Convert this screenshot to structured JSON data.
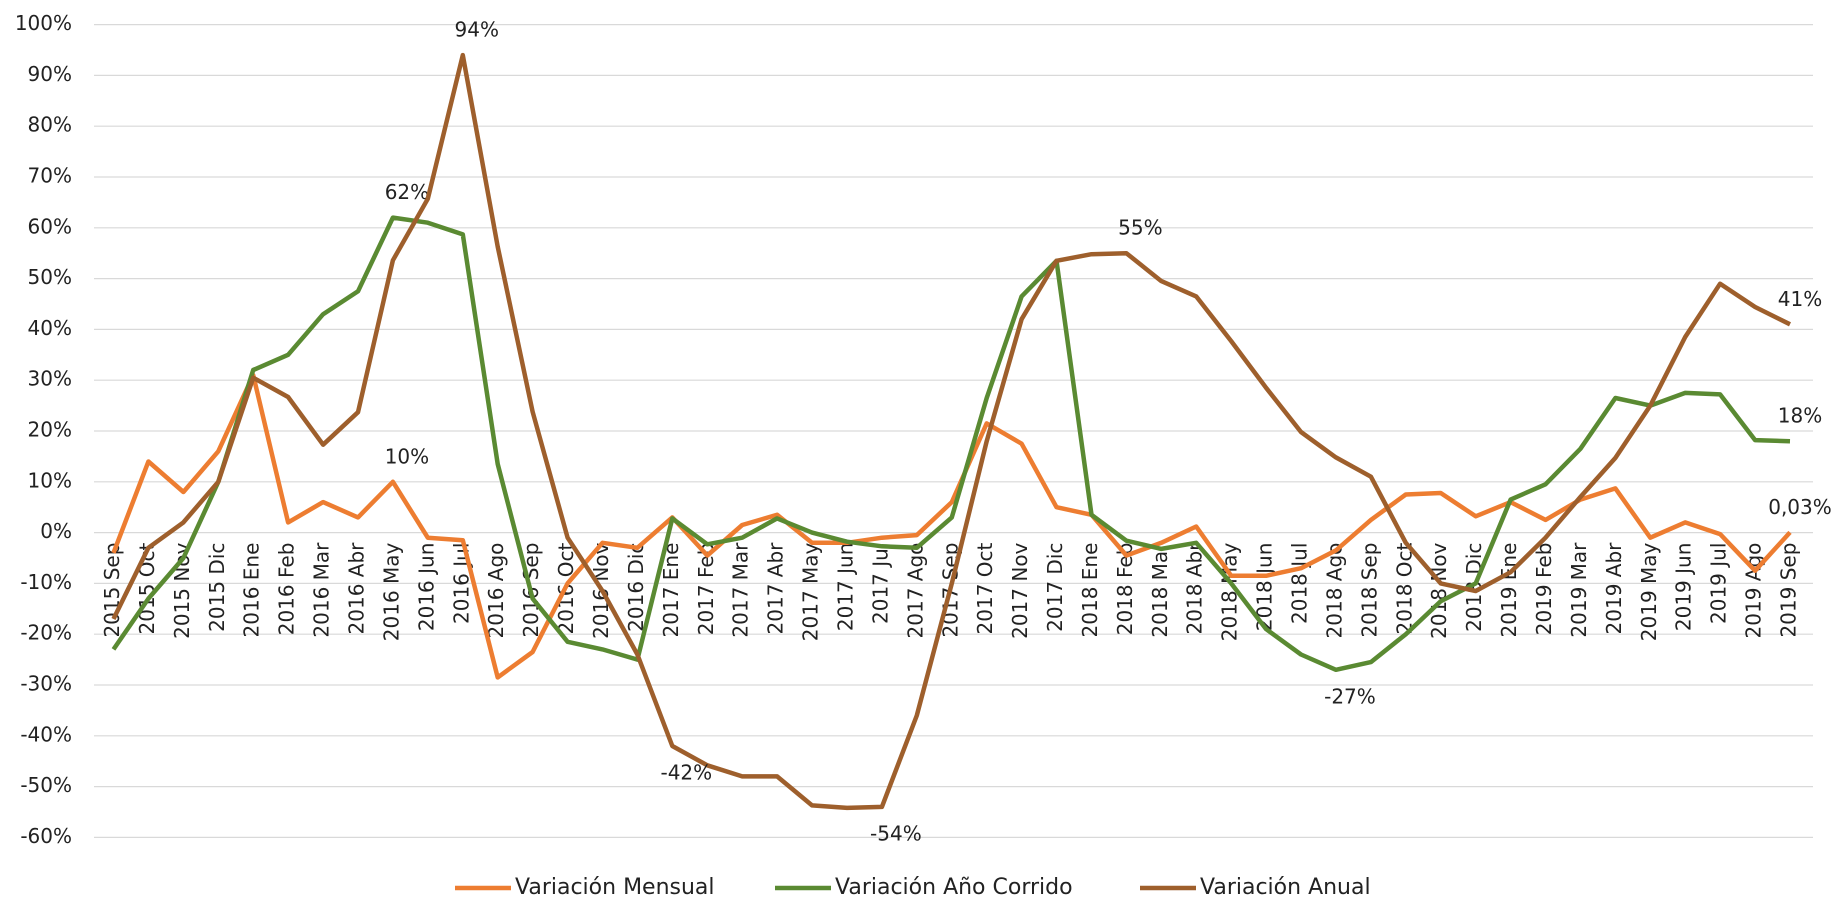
{
  "chart_data": {
    "type": "line",
    "categories": [
      "2015 Sep",
      "2015 Oct",
      "2015 Nov",
      "2015 Dic",
      "2016 Ene",
      "2016 Feb",
      "2016 Mar",
      "2016 Abr",
      "2016 May",
      "2016 Jun",
      "2016 Jul",
      "2016 Ago",
      "2016 Sep",
      "2016 Oct",
      "2016 Nov",
      "2016 Dic",
      "2017 Ene",
      "2017 Feb",
      "2017 Mar",
      "2017 Abr",
      "2017 May",
      "2017 Jun",
      "2017 Jul",
      "2017 Ago",
      "2017 Sep",
      "2017 Oct",
      "2017 Nov",
      "2017 Dic",
      "2018 Ene",
      "2018 Feb",
      "2018 Mar",
      "2018 Abr",
      "2018 May",
      "2018 Jun",
      "2018 Jul",
      "2018 Ago",
      "2018 Sep",
      "2018 Oct",
      "2018 Nov",
      "2018 Dic",
      "2019 Ene",
      "2019 Feb",
      "2019 Mar",
      "2019 Abr",
      "2019 May",
      "2019 Jun",
      "2019 Jul",
      "2019 Ago",
      "2019 Sep"
    ],
    "series": [
      {
        "name": "Variación Mensual",
        "color": "#ed7d31",
        "values": [
          -4,
          14,
          8,
          16,
          31,
          2,
          6,
          3,
          10,
          -1,
          -1.5,
          -28.5,
          -23.5,
          -10,
          -2,
          -3,
          3,
          -4.5,
          1.5,
          3.5,
          -2,
          -2,
          -1,
          -0.5,
          6,
          21.5,
          17.5,
          5,
          3.5,
          -4.5,
          -2,
          1.2,
          -8.5,
          -8.5,
          -7,
          -3.5,
          2.5,
          7.5,
          7.8,
          3.2,
          6,
          2.5,
          6.5,
          8.7,
          -1,
          2,
          -0.3,
          -7.5,
          0.03
        ],
        "value_labels": [
          null,
          null,
          null,
          null,
          null,
          null,
          null,
          null,
          "10%",
          null,
          null,
          null,
          null,
          null,
          null,
          null,
          null,
          null,
          null,
          null,
          null,
          null,
          null,
          null,
          null,
          null,
          null,
          null,
          null,
          null,
          null,
          null,
          null,
          null,
          null,
          null,
          null,
          null,
          null,
          null,
          null,
          null,
          null,
          null,
          null,
          null,
          null,
          null,
          "0,03%"
        ]
      },
      {
        "name": "Variación Año Corrido",
        "color": "#5a8a32",
        "values": [
          -23,
          -13,
          -5,
          10,
          32,
          35,
          43,
          47.5,
          62,
          61,
          58.7,
          13.5,
          -13,
          -21.5,
          -23,
          -25,
          2.8,
          -2.3,
          -1,
          2.8,
          0,
          -1.8,
          -2.7,
          -3,
          3,
          26.5,
          46.5,
          53.5,
          3.5,
          -1.6,
          -3.2,
          -2,
          -10,
          -19,
          -24,
          -27,
          -25.5,
          -20,
          -13.5,
          -10,
          6.5,
          9.5,
          16.5,
          26.5,
          25,
          27.5,
          27.2,
          18.2,
          18
        ],
        "value_labels": [
          null,
          null,
          null,
          null,
          null,
          null,
          null,
          null,
          "62%",
          null,
          null,
          null,
          null,
          null,
          null,
          null,
          null,
          null,
          null,
          null,
          null,
          null,
          null,
          null,
          null,
          null,
          null,
          null,
          null,
          null,
          null,
          null,
          null,
          null,
          null,
          "-27%",
          null,
          null,
          null,
          null,
          null,
          null,
          null,
          null,
          null,
          null,
          null,
          null,
          "18%"
        ]
      },
      {
        "name": "Variación Anual",
        "color": "#9e5f2c",
        "values": [
          -17,
          -3,
          2,
          10,
          30.5,
          26.7,
          17.3,
          23.7,
          53.6,
          65.7,
          94,
          56.3,
          23.8,
          -1,
          -11.5,
          -24,
          -42,
          -45.8,
          -48,
          -48,
          -53.7,
          -54.2,
          -54,
          -36,
          -10,
          18,
          42,
          53.5,
          54.8,
          55,
          49.5,
          46.5,
          37.7,
          28.5,
          19.8,
          14.8,
          11,
          -2,
          -10,
          -11.5,
          -7.8,
          -1,
          7,
          14.7,
          25,
          38.5,
          49,
          44.4,
          41
        ],
        "value_labels": [
          null,
          null,
          null,
          null,
          null,
          null,
          null,
          null,
          null,
          null,
          "94%",
          null,
          null,
          null,
          null,
          null,
          "-42%",
          null,
          null,
          null,
          null,
          null,
          "-54%",
          null,
          null,
          null,
          null,
          null,
          null,
          "55%",
          null,
          null,
          null,
          null,
          null,
          null,
          null,
          null,
          null,
          null,
          null,
          null,
          null,
          null,
          null,
          null,
          null,
          null,
          "41%"
        ]
      }
    ],
    "ylim": [
      -60,
      100
    ],
    "yticks": [
      {
        "value": -60,
        "label": "-60%"
      },
      {
        "value": -50,
        "label": "-50%"
      },
      {
        "value": -40,
        "label": "-40%"
      },
      {
        "value": -30,
        "label": "-30%"
      },
      {
        "value": -20,
        "label": "-20%"
      },
      {
        "value": -10,
        "label": "-10%"
      },
      {
        "value": 0,
        "label": "0%"
      },
      {
        "value": 10,
        "label": "10%"
      },
      {
        "value": 20,
        "label": "20%"
      },
      {
        "value": 30,
        "label": "30%"
      },
      {
        "value": 40,
        "label": "40%"
      },
      {
        "value": 50,
        "label": "50%"
      },
      {
        "value": 60,
        "label": "60%"
      },
      {
        "value": 70,
        "label": "70%"
      },
      {
        "value": 80,
        "label": "80%"
      },
      {
        "value": 90,
        "label": "90%"
      },
      {
        "value": 100,
        "label": "100%"
      }
    ],
    "grid": true,
    "legend": "bottom"
  }
}
